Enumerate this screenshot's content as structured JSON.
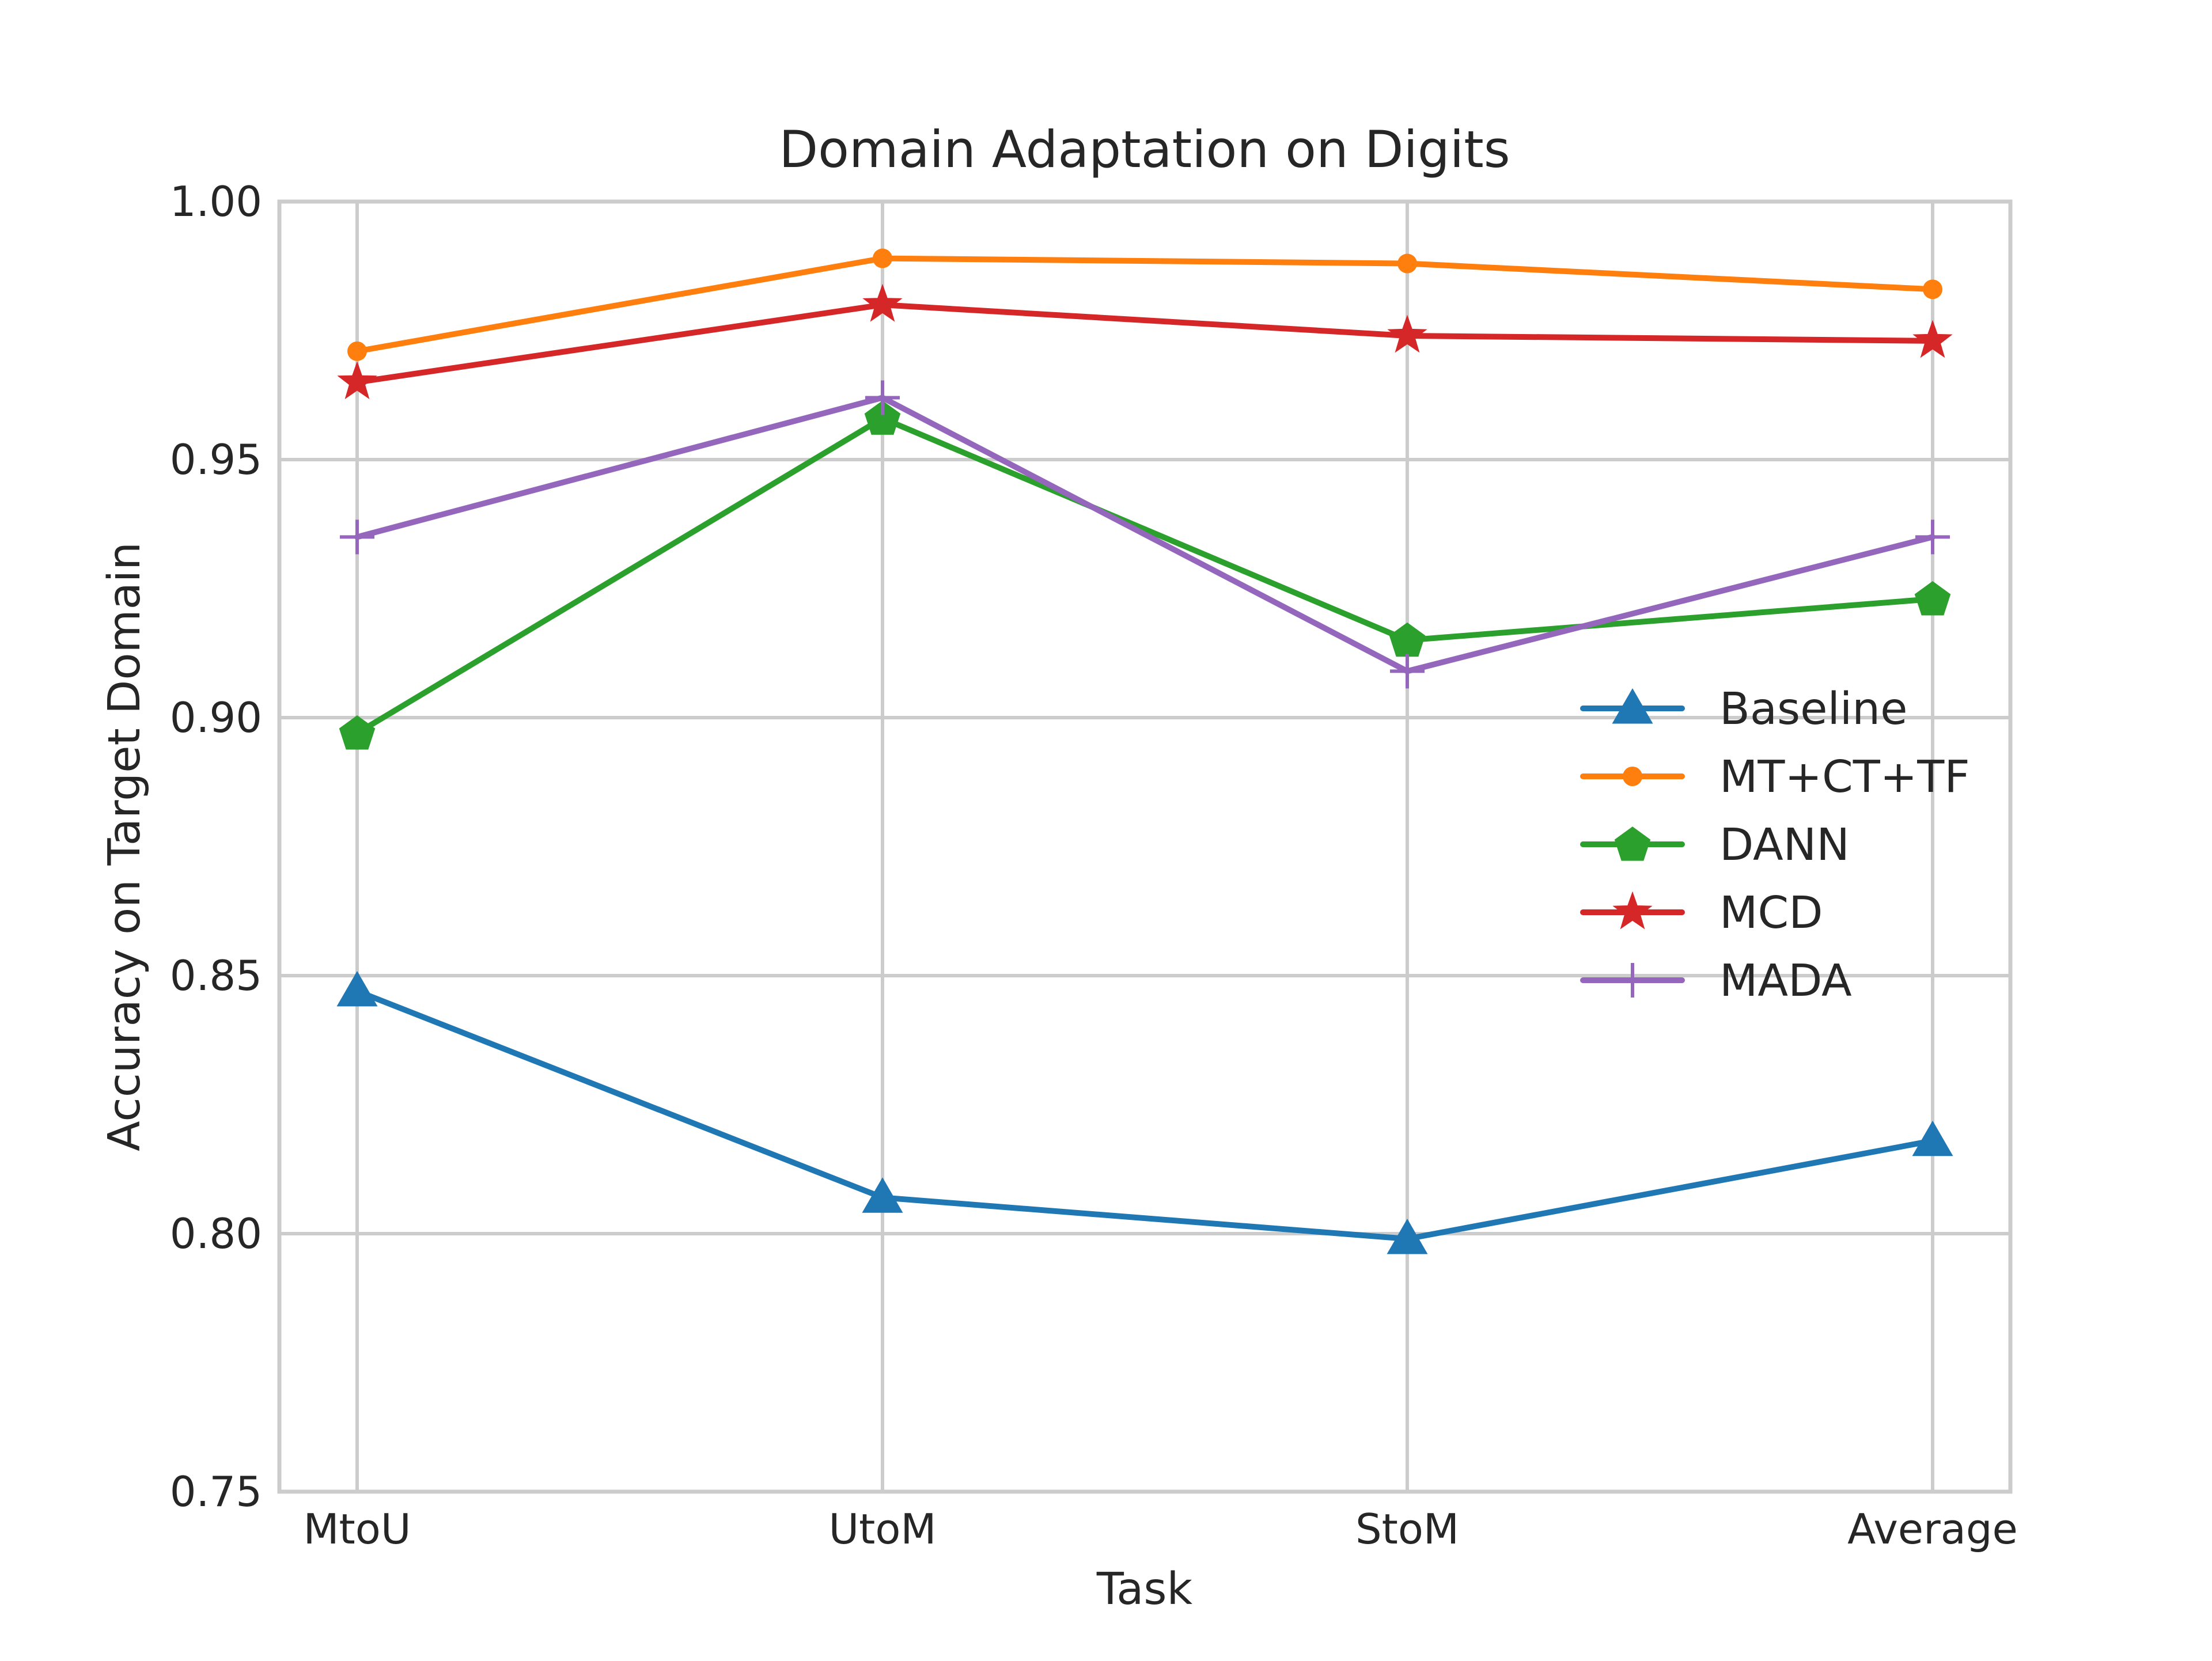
{
  "chart_data": {
    "type": "line",
    "title": "Domain Adaptation on Digits",
    "xlabel": "Task",
    "ylabel": "Accuracy on Target Domain",
    "categories": [
      "MtoU",
      "UtoM",
      "StoM",
      "Average"
    ],
    "ylim": [
      0.75,
      1.0
    ],
    "yticks": [
      "0.75",
      "0.80",
      "0.85",
      "0.90",
      "0.95",
      "1.00"
    ],
    "grid": true,
    "legend_position": "center-right",
    "series": [
      {
        "name": "Baseline",
        "color": "#1f77b4",
        "marker": "triangle",
        "values": [
          0.847,
          0.807,
          0.799,
          0.818
        ]
      },
      {
        "name": "MT+CT+TF",
        "color": "#ff7f0e",
        "marker": "circle",
        "values": [
          0.971,
          0.989,
          0.988,
          0.983
        ]
      },
      {
        "name": "DANN",
        "color": "#2ca02c",
        "marker": "pentagon",
        "values": [
          0.897,
          0.958,
          0.915,
          0.923
        ]
      },
      {
        "name": "MCD",
        "color": "#d62728",
        "marker": "star",
        "values": [
          0.965,
          0.98,
          0.974,
          0.973
        ]
      },
      {
        "name": "MADA",
        "color": "#9467bd",
        "marker": "plus",
        "values": [
          0.935,
          0.962,
          0.909,
          0.935
        ]
      }
    ]
  }
}
